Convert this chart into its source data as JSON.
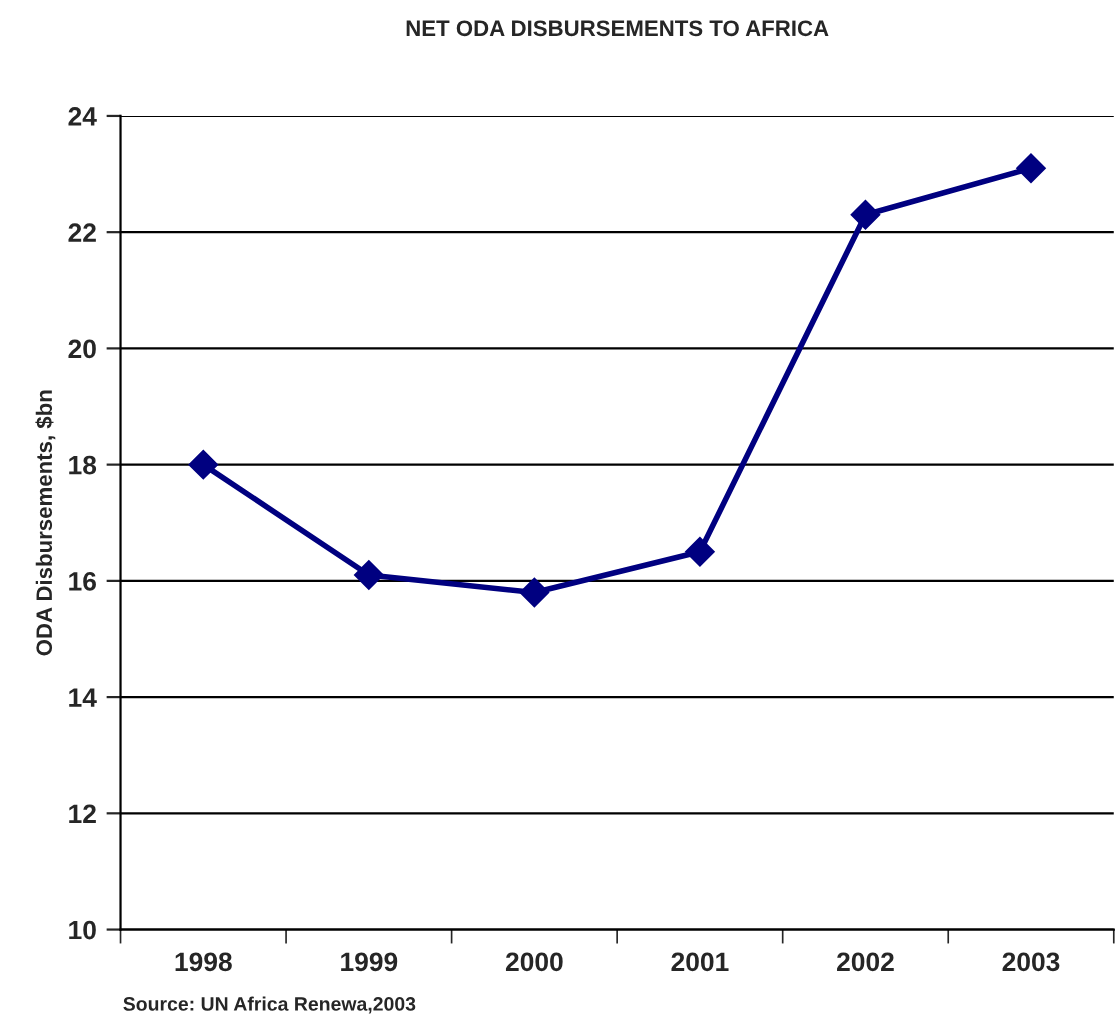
{
  "chart_data": {
    "type": "line",
    "title": "NET ODA DISBURSEMENTS TO AFRICA",
    "ylabel": "ODA Disbursements, $bn",
    "categories": [
      "1998",
      "1999",
      "2000",
      "2001",
      "2002",
      "2003"
    ],
    "series": [
      {
        "color": "#000080",
        "values": [
          18.0,
          16.1,
          15.8,
          16.5,
          22.3,
          23.1
        ]
      }
    ],
    "ylim": [
      10,
      24
    ],
    "yticks": [
      10,
      12,
      14,
      16,
      18,
      20,
      22,
      24
    ],
    "grid": "y",
    "marker": "diamond",
    "line_style": "solid",
    "annotations": [
      "Source: UN Africa Renewa,2003"
    ]
  }
}
